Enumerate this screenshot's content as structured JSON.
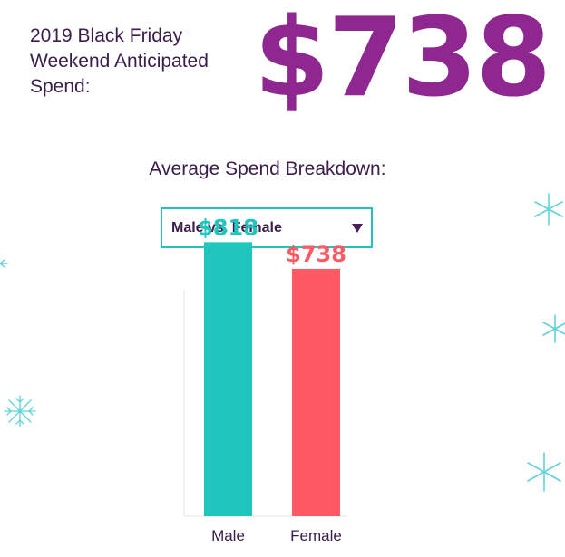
{
  "header": {
    "label": "2019 Black Friday\nWeekend Anticipated\nSpend:",
    "value": "$738"
  },
  "breakdown": {
    "title": "Average Spend Breakdown:",
    "dropdown": {
      "selected": "Male vs. Female"
    }
  },
  "colors": {
    "headline": "#8e278f",
    "text": "#3a1d4a",
    "teal": "#1fc6bd",
    "coral": "#ff5a63",
    "snowflake": "#5fd3d8"
  },
  "icons": [
    "snowflake-icon",
    "chevron-down-icon"
  ],
  "chart_data": {
    "type": "bar",
    "title": "",
    "xlabel": "",
    "ylabel": "",
    "categories": [
      "Male",
      "Female"
    ],
    "values": [
      818,
      738
    ],
    "data_labels": [
      "$818",
      "$738"
    ],
    "bar_colors": [
      "#1fc6bd",
      "#ff5a63"
    ],
    "ylim": [
      0,
      1000
    ],
    "grid": false,
    "legend": "none"
  }
}
